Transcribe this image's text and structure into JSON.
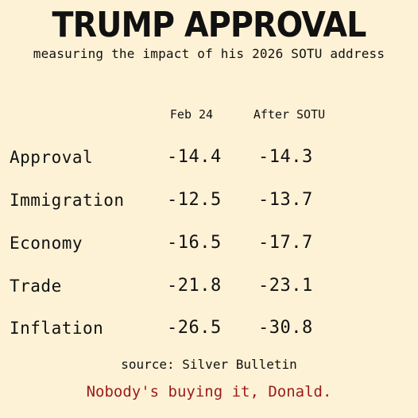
{
  "title": "TRUMP APPROVAL",
  "subtitle": "measuring the impact of his 2026 SOTU address",
  "table": {
    "columns": [
      "Feb 24",
      "After SOTU"
    ],
    "rows": [
      {
        "label": "Approval",
        "values": [
          "-14.4",
          "-14.3"
        ]
      },
      {
        "label": "Immigration",
        "values": [
          "-12.5",
          "-13.7"
        ]
      },
      {
        "label": "Economy",
        "values": [
          "-16.5",
          "-17.7"
        ]
      },
      {
        "label": "Trade",
        "values": [
          "-21.8",
          "-23.1"
        ]
      },
      {
        "label": "Inflation",
        "values": [
          "-26.5",
          "-30.8"
        ]
      }
    ]
  },
  "source": "source: Silver Bulletin",
  "tagline": "Nobody's buying it, Donald.",
  "colors": {
    "background": "#fef2d6",
    "text": "#111111",
    "tagline": "#9b1b1b"
  }
}
